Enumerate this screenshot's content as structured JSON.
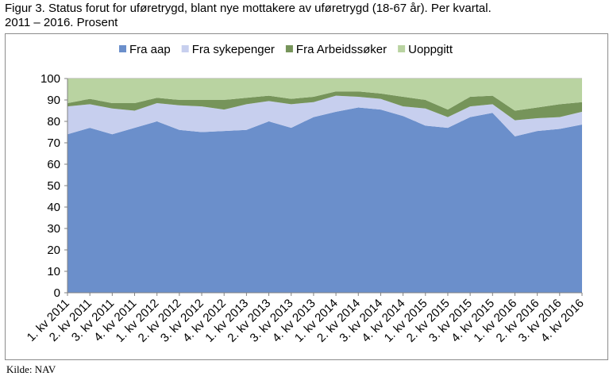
{
  "figure": {
    "title_line1": "Figur 3. Status forut for uføretrygd, blant nye mottakere av uføretrygd (18-67 år). Per kvartal.",
    "title_line2": "2011 – 2016. Prosent",
    "source": "Kilde: NAV"
  },
  "chart_data": {
    "type": "area",
    "stacked": true,
    "grid": true,
    "legend_position": "top",
    "ylim": [
      0,
      100
    ],
    "yticks": [
      0,
      10,
      20,
      30,
      40,
      50,
      60,
      70,
      80,
      90,
      100
    ],
    "categories": [
      "1. kv 2011",
      "2. kv 2011",
      "3. kv 2011",
      "4. kv 2011",
      "1. kv 2012",
      "2. kv 2012",
      "3. kv 2012",
      "4. kv 2012",
      "1. kv 2013",
      "2. kv 2013",
      "3. kv 2013",
      "4. kv 2013",
      "1. kv 2014",
      "2. kv 2014",
      "3. kv 2014",
      "4. kv 2014",
      "1. kv 2015",
      "2. kv 2015",
      "3. kv 2015",
      "4. kv 2015",
      "1. kv 2016",
      "2. kv 2016",
      "3. kv 2016",
      "4. kv 2016"
    ],
    "series": [
      {
        "name": "Fra aap",
        "color": "#6b8fcb",
        "values": [
          74,
          77,
          74,
          77,
          80,
          76,
          75,
          75.5,
          76,
          80,
          77,
          82,
          84.5,
          86.5,
          85.5,
          82.5,
          78,
          77,
          82,
          84,
          73,
          75.5,
          76.5,
          78.5
        ]
      },
      {
        "name": "Fra sykepenger",
        "color": "#c7cfee",
        "values": [
          13,
          11,
          12,
          8,
          8.5,
          11.5,
          12,
          10,
          12,
          9.5,
          11,
          7,
          7.5,
          5,
          5,
          4.5,
          8,
          5,
          5,
          4,
          7.5,
          6,
          5.5,
          6
        ]
      },
      {
        "name": "Fra Arbeidssøker",
        "color": "#76945a",
        "values": [
          1.5,
          2.5,
          2.5,
          3.5,
          2.5,
          2.5,
          3,
          4.5,
          3,
          2.5,
          2.5,
          2.5,
          2,
          2.5,
          2.5,
          4.5,
          4,
          3.5,
          4.5,
          4,
          4.5,
          5,
          6,
          4.5
        ]
      },
      {
        "name": "Uoppgitt",
        "color": "#b9d3a1",
        "values": [
          11.5,
          9.5,
          11.5,
          11.5,
          9,
          10,
          10,
          10,
          9,
          8,
          9.5,
          8.5,
          6,
          6,
          7,
          8.5,
          10,
          14.5,
          8.5,
          8,
          15,
          13.5,
          12,
          11
        ]
      }
    ]
  }
}
